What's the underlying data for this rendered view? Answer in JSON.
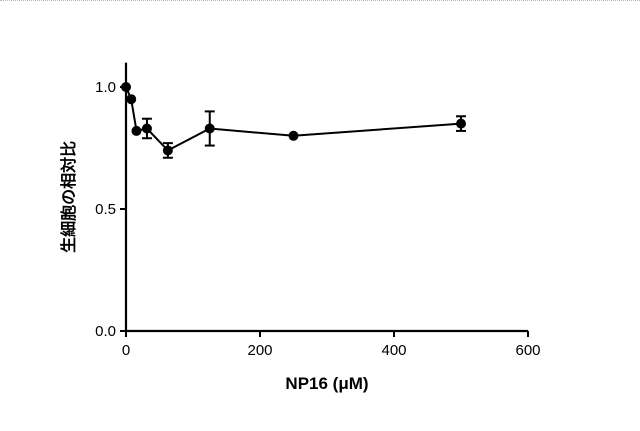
{
  "chart_data": {
    "type": "line",
    "title": "",
    "xlabel": "NP16 (μM)",
    "ylabel": "生細胞の相対比",
    "xlim": [
      0,
      600
    ],
    "ylim": [
      0.0,
      1.1
    ],
    "x_ticks": [
      "0",
      "200",
      "400",
      "600"
    ],
    "y_ticks": [
      "0.0",
      "0.5",
      "1.0"
    ],
    "x_tick_values": [
      0,
      200,
      400,
      600
    ],
    "y_tick_values": [
      0.0,
      0.5,
      1.0
    ],
    "grid": false,
    "series": [
      {
        "name": "NP16",
        "x": [
          0,
          7.8,
          15.6,
          31.25,
          62.5,
          125,
          250,
          500
        ],
        "y": [
          1.0,
          0.95,
          0.82,
          0.83,
          0.74,
          0.83,
          0.8,
          0.85
        ],
        "err": [
          0.0,
          0.0,
          0.0,
          0.04,
          0.03,
          0.07,
          0.0,
          0.03
        ]
      }
    ]
  }
}
